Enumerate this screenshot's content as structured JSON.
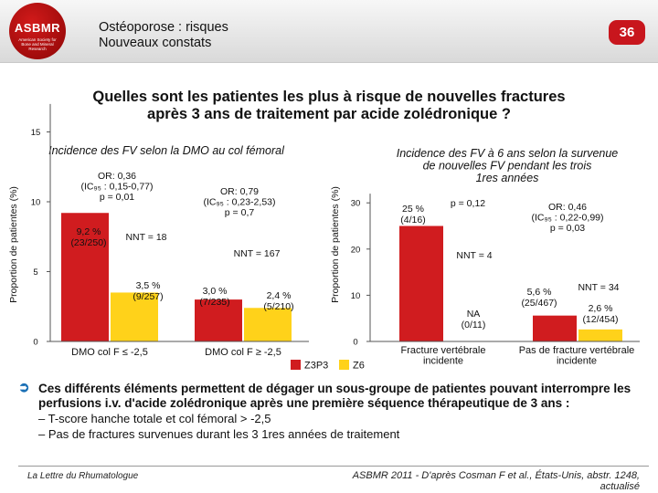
{
  "header": {
    "logo_text": "ASBMR",
    "logo_subtext": "American Society for Bone and Mineral Research",
    "title": "Ostéoporose : risques\nNouveaux constats",
    "page_number": "36"
  },
  "main_title": "Quelles sont les patientes les plus à risque de nouvelles fractures\naprès 3 ans de traitement par acide zolédronique ?",
  "colors": {
    "z3p3": "#d01c1f",
    "z6": "#ffd21a",
    "accent": "#c8161d",
    "arrow": "#1a6fb5"
  },
  "legend": [
    {
      "label": "Z3P3",
      "color": "#d01c1f"
    },
    {
      "label": "Z6",
      "color": "#ffd21a"
    }
  ],
  "chart_data": [
    {
      "type": "bar",
      "title": "Incidence des FV selon la DMO au col fémoral",
      "ylabel": "Proportion de patientes (%)",
      "ylim": [
        0,
        17
      ],
      "yticks": [
        0,
        5,
        10,
        15
      ],
      "categories": [
        "DMO col F ≤ -2,5",
        "DMO col F ≥ -2,5"
      ],
      "series": [
        {
          "name": "Z3P3",
          "values": [
            9.2,
            3.0
          ]
        },
        {
          "name": "Z6",
          "values": [
            3.5,
            2.4
          ]
        }
      ],
      "bar_labels": [
        [
          "9,2 %\n(23/250)",
          "3,5 %\n(9/257)"
        ],
        [
          "3,0 %\n(7/235)",
          "2,4 %\n(5/210)"
        ]
      ],
      "annotations": [
        "OR: 0,36\n(IC₉₅ : 0,15-0,77)\np = 0,01",
        "NNT = 18",
        "OR: 0,79\n(IC₉₅ : 0,23-2,53)\np = 0,7",
        "NNT = 167"
      ]
    },
    {
      "type": "bar",
      "title": "Incidence des FV à 6 ans selon la survenue\nde nouvelles FV pendant les trois\n1res années",
      "ylabel": "Proportion de patientes (%)",
      "ylim": [
        0,
        32
      ],
      "yticks": [
        0,
        10,
        20,
        30
      ],
      "categories": [
        "Fracture vertébrale\nincidente",
        "Pas de fracture vertébrale\nincidente"
      ],
      "series": [
        {
          "name": "Z3P3",
          "values": [
            25,
            5.6
          ]
        },
        {
          "name": "Z6",
          "values": [
            0,
            2.6
          ]
        }
      ],
      "bar_labels": [
        [
          "25 %\n(4/16)",
          "NA\n(0/11)"
        ],
        [
          "5,6 %\n(25/467)",
          "2,6 %\n(12/454)"
        ]
      ],
      "annotations": [
        "p = 0,12",
        "NNT = 4",
        "OR: 0,46\n(IC₉₅ : 0,22-0,99)\np = 0,03",
        "NNT = 34"
      ]
    }
  ],
  "bullets": {
    "main": "Ces différents éléments permettent de dégager un sous-groupe de patientes pouvant interrompre les perfusions i.v. d'acide zolédronique après une première séquence thérapeutique de 3 ans :",
    "items": [
      "– T-score hanche totale et col fémoral > -2,5",
      "– Pas de fractures survenues durant les 3 1res années de traitement"
    ]
  },
  "footer": {
    "left": "La Lettre du Rhumatologue",
    "right": "ASBMR 2011 - D'après Cosman F et al., États-Unis, abstr. 1248, actualisé"
  }
}
